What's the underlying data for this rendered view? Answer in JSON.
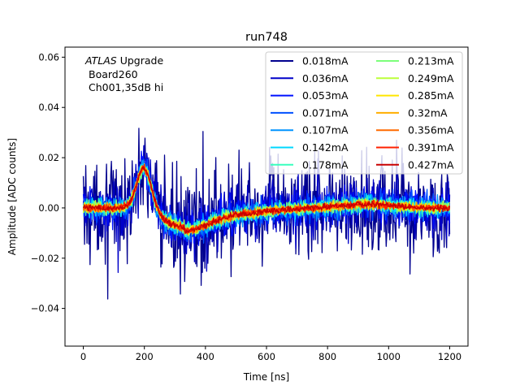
{
  "chart_data": {
    "type": "line",
    "title": "run748",
    "xlabel": "Time [ns]",
    "ylabel": "Amplitude [ADC counts]",
    "xlim": [
      -60,
      1260
    ],
    "ylim": [
      -0.055,
      0.064
    ],
    "xticks": [
      0,
      200,
      400,
      600,
      800,
      1000,
      1200
    ],
    "yticks": [
      -0.04,
      -0.02,
      0.0,
      0.02,
      0.04,
      0.06
    ],
    "ytick_labels": [
      "−0.04",
      "−0.02",
      "0.00",
      "0.02",
      "0.04",
      "0.06"
    ],
    "grid": false,
    "legend_position": "top-right",
    "legend_columns": 2,
    "annotation": {
      "line1_italic": "ATLAS",
      "line1_rest": " Upgrade",
      "line2": "Board260",
      "line3": "Ch001,35dB hi"
    },
    "x_range_ns": [
      0,
      1200
    ],
    "sample_step_ns": 2,
    "pulse_shape": {
      "peak_time_ns": 200,
      "peak_amplitude": 0.0165,
      "undershoot_time_ns": 330,
      "undershoot_amplitude": -0.0075,
      "bump_time_ns": 930,
      "bump_amplitude": 0.0015
    },
    "series": [
      {
        "name": "0.018mA",
        "color": "#00008f",
        "noise_amplitude": 0.03
      },
      {
        "name": "0.036mA",
        "color": "#0000c8",
        "noise_amplitude": 0.016
      },
      {
        "name": "0.053mA",
        "color": "#0010ff",
        "noise_amplitude": 0.011
      },
      {
        "name": "0.071mA",
        "color": "#0050ff",
        "noise_amplitude": 0.0085
      },
      {
        "name": "0.107mA",
        "color": "#0094ff",
        "noise_amplitude": 0.0065
      },
      {
        "name": "0.142mA",
        "color": "#00d8ff",
        "noise_amplitude": 0.0052
      },
      {
        "name": "0.178mA",
        "color": "#38ffbe",
        "noise_amplitude": 0.0044
      },
      {
        "name": "0.213mA",
        "color": "#7cff7a",
        "noise_amplitude": 0.0038
      },
      {
        "name": "0.249mA",
        "color": "#bcff3a",
        "noise_amplitude": 0.0033
      },
      {
        "name": "0.285mA",
        "color": "#ffe600",
        "noise_amplitude": 0.0029
      },
      {
        "name": "0.32mA",
        "color": "#ffae00",
        "noise_amplitude": 0.0026
      },
      {
        "name": "0.356mA",
        "color": "#ff6a00",
        "noise_amplitude": 0.0023
      },
      {
        "name": "0.391mA",
        "color": "#ff2000",
        "noise_amplitude": 0.0021
      },
      {
        "name": "0.427mA",
        "color": "#c80000",
        "noise_amplitude": 0.0019
      }
    ]
  }
}
